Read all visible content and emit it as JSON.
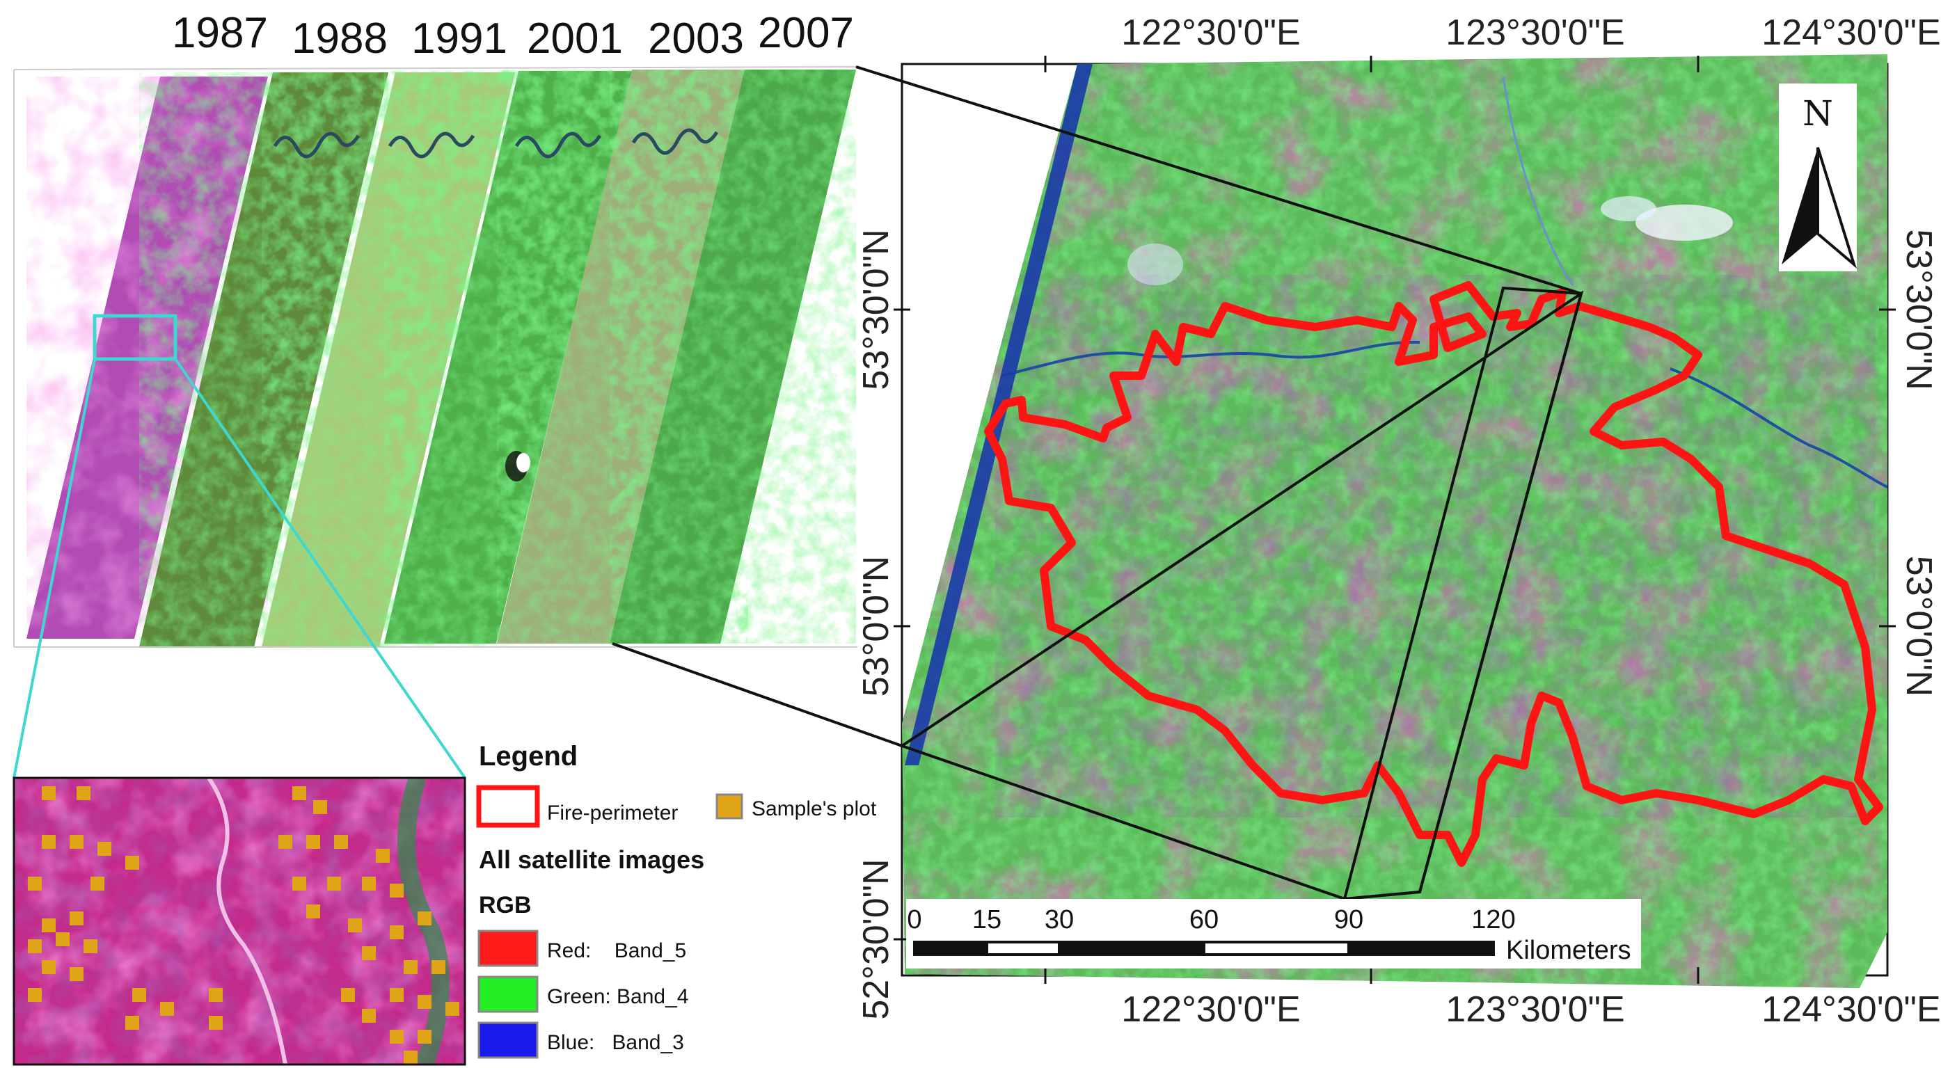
{
  "years": [
    "1987",
    "1988",
    "1991",
    "2001",
    "2003",
    "2007"
  ],
  "coordinates": {
    "top_longitudes": [
      "122°30'0\"E",
      "123°30'0\"E",
      "124°30'0\"E"
    ],
    "bottom_longitudes": [
      "122°30'0\"E",
      "123°30'0\"E",
      "124°30'0\"E"
    ],
    "right_latitudes": [
      "53°30'0\"N",
      "53°0'0\"N"
    ],
    "left_latitudes": [
      "53°30'0\"N",
      "53°0'0\"N",
      "52°30'0\"N"
    ]
  },
  "north_arrow": {
    "label": "N",
    "icon": "north-arrow-icon"
  },
  "scale_bar": {
    "ticks": [
      "0",
      "15",
      "30",
      "60",
      "90",
      "120"
    ],
    "tick_values": [
      0,
      15,
      30,
      60,
      90,
      120
    ],
    "unit": "Kilometers"
  },
  "legend": {
    "title": "Legend",
    "fire_perimeter": "Fire-perimeter",
    "sample_plot": "Sample's plot",
    "images_heading": "All satellite images",
    "rgb_heading": "RGB",
    "bands": [
      {
        "label": "Red:    Band_5",
        "color": "#ff1a1a"
      },
      {
        "label": "Green: Band_4",
        "color": "#22ee22"
      },
      {
        "label": "Blue:   Band_3",
        "color": "#1a1aee"
      }
    ]
  },
  "colors": {
    "fire_perimeter": "#ff1414",
    "inset_outline": "#3fd8d0",
    "sample_plot": "#e0a418",
    "vegetation": "#3ea84a",
    "burn_scar": "#a03a6a"
  }
}
